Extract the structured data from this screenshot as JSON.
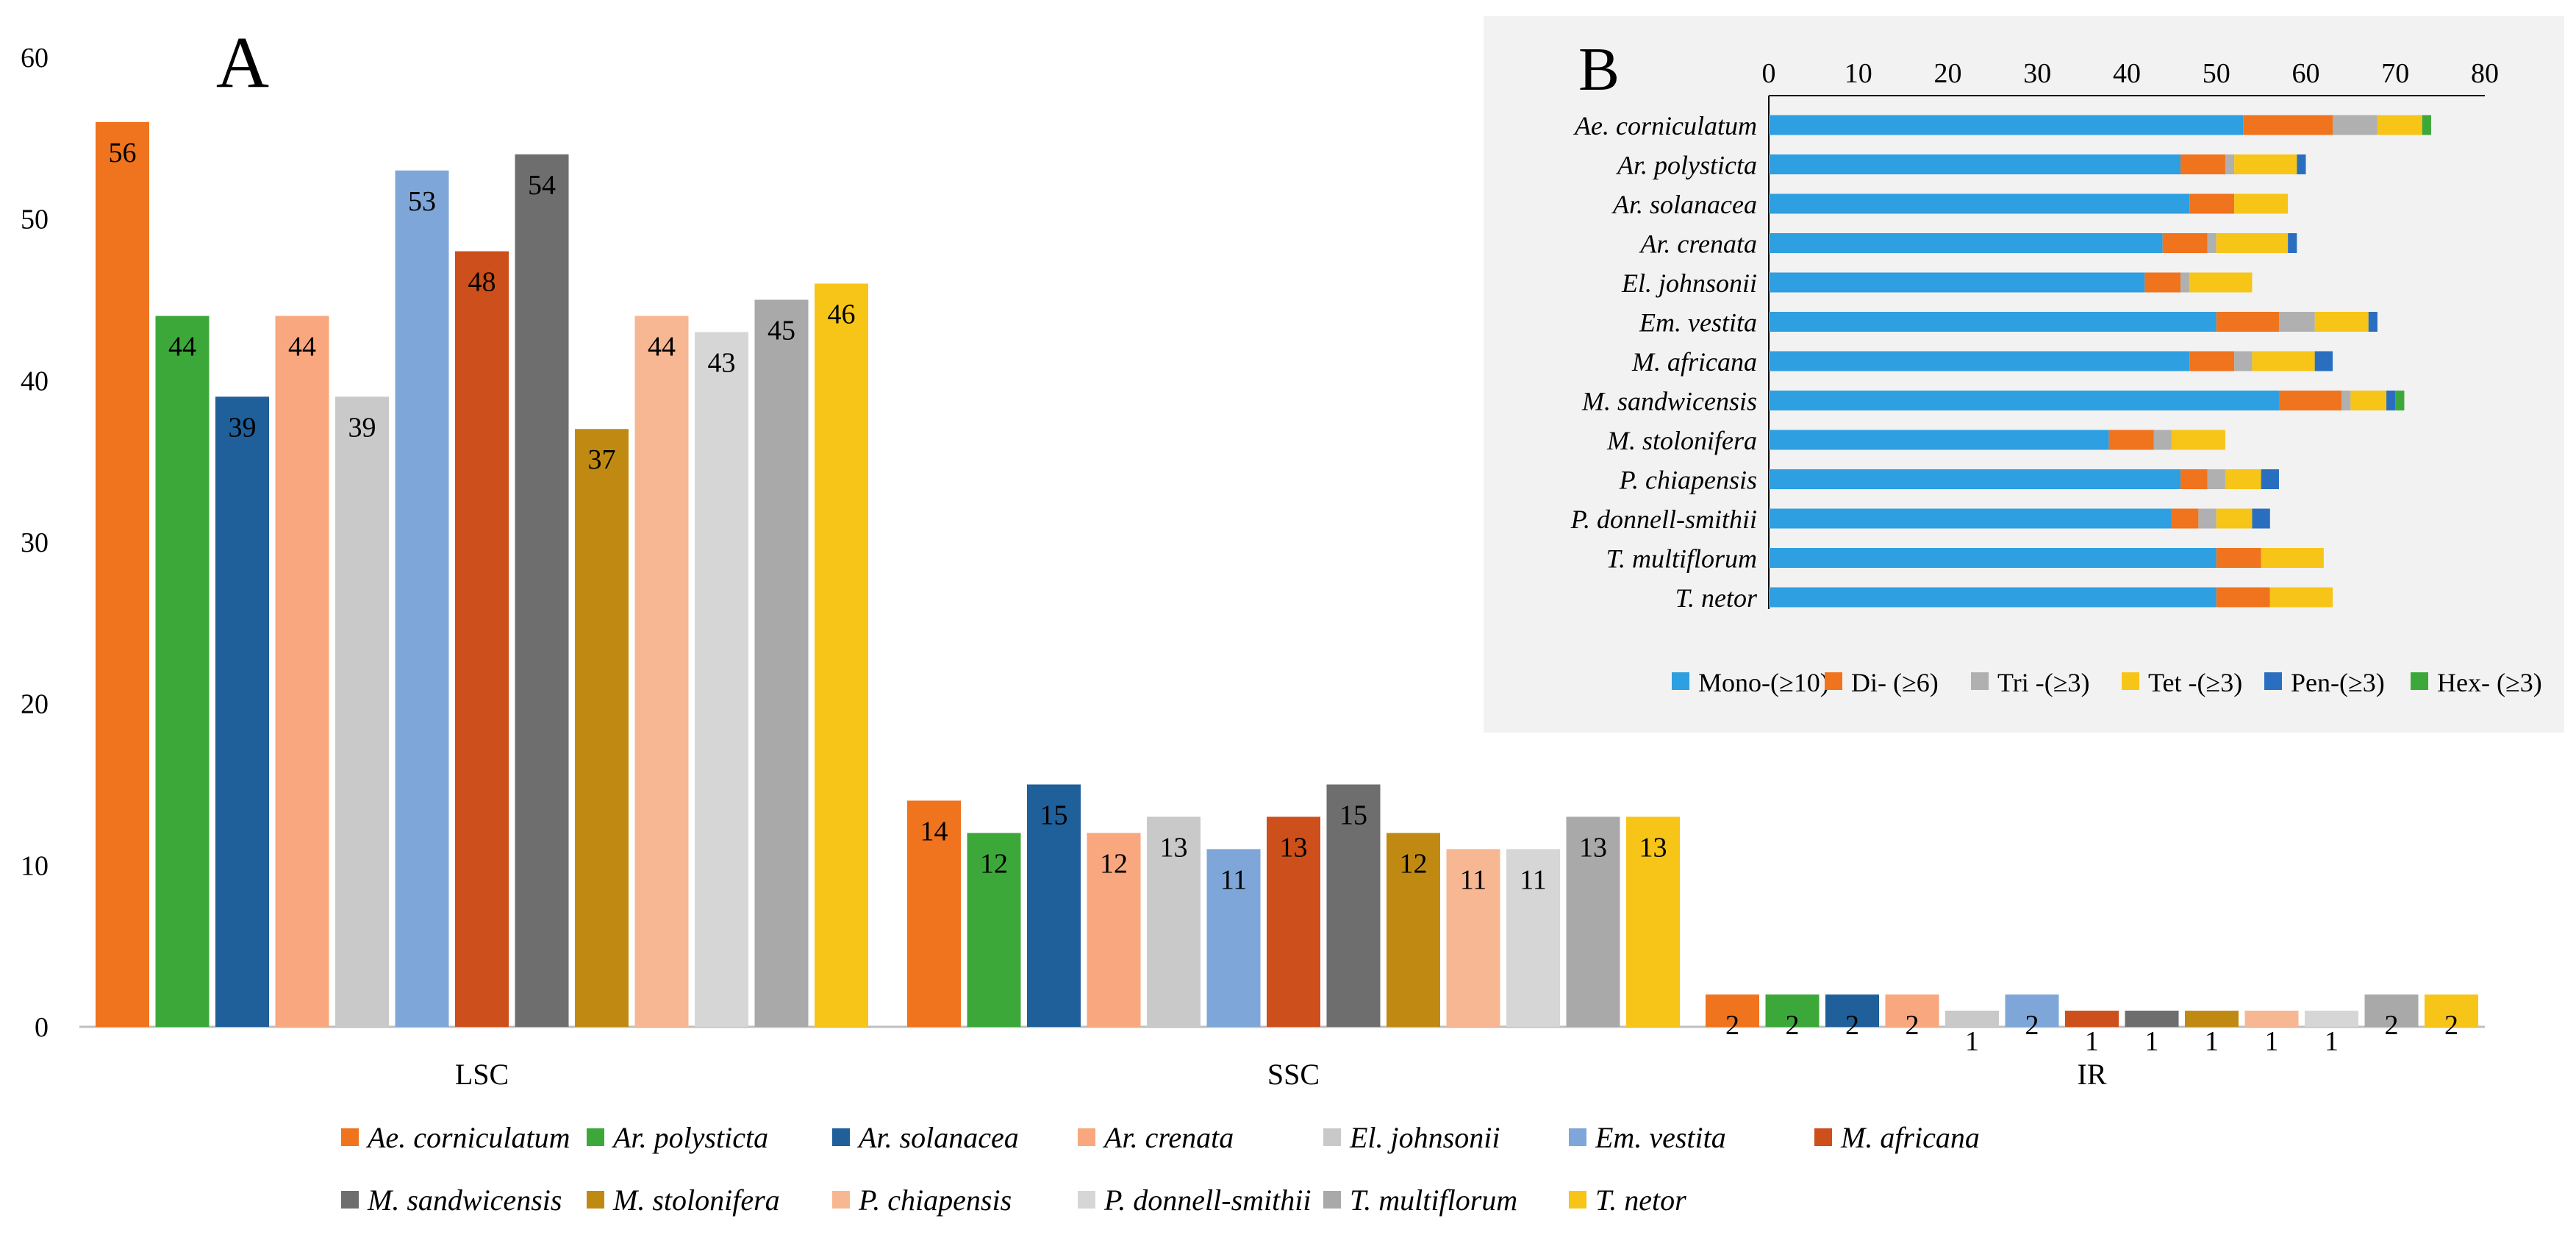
{
  "chart_data": [
    {
      "panel_label": "A",
      "type": "bar",
      "categories": [
        "LSC",
        "SSC",
        "IR"
      ],
      "ylim": [
        0,
        60
      ],
      "yticks": [
        0,
        10,
        20,
        30,
        40,
        50,
        60
      ],
      "grid": false,
      "legend_position": "bottom",
      "series": [
        {
          "name": "Ae. corniculatum",
          "color": "#f0731e",
          "values": [
            56,
            14,
            2
          ]
        },
        {
          "name": "Ar. polysticta",
          "color": "#3da83a",
          "values": [
            44,
            12,
            2
          ]
        },
        {
          "name": "Ar. solanacea",
          "color": "#1f5f9a",
          "values": [
            39,
            15,
            2
          ]
        },
        {
          "name": "Ar. crenata",
          "color": "#f9a77e",
          "values": [
            44,
            12,
            2
          ]
        },
        {
          "name": "El. johnsonii",
          "color": "#c9c9c9",
          "values": [
            39,
            13,
            1
          ]
        },
        {
          "name": "Em. vestita",
          "color": "#7fa6d9",
          "values": [
            53,
            11,
            2
          ]
        },
        {
          "name": "M. africana",
          "color": "#cc4f1c",
          "values": [
            48,
            13,
            1
          ]
        },
        {
          "name": "M. sandwicensis",
          "color": "#6e6e6e",
          "values": [
            54,
            15,
            1
          ]
        },
        {
          "name": "M. stolonifera",
          "color": "#c08a12",
          "values": [
            37,
            12,
            1
          ]
        },
        {
          "name": "P. chiapensis",
          "color": "#f7b792",
          "values": [
            44,
            11,
            1
          ]
        },
        {
          "name": "P. donnell-smithii",
          "color": "#d6d6d6",
          "values": [
            43,
            11,
            1
          ]
        },
        {
          "name": "T. multiflorum",
          "color": "#a9a9a9",
          "values": [
            45,
            13,
            2
          ]
        },
        {
          "name": "T. netor",
          "color": "#f7c518",
          "values": [
            46,
            13,
            2
          ]
        }
      ]
    },
    {
      "panel_label": "B",
      "type": "stacked-bar-horizontal",
      "xlim": [
        0,
        80
      ],
      "xticks": [
        0,
        10,
        20,
        30,
        40,
        50,
        60,
        70,
        80
      ],
      "grid": false,
      "legend_position": "bottom",
      "categories": [
        "Ae. corniculatum",
        "Ar. polysticta",
        "Ar. solanacea",
        "Ar. crenata",
        "El. johnsonii",
        "Em. vestita",
        "M. africana",
        "M. sandwicensis",
        "M. stolonifera",
        "P. chiapensis",
        "P. donnell-smithii",
        "T. multiflorum",
        "T. netor"
      ],
      "series": [
        {
          "name": "Mono-(≥10)",
          "color": "#2e9fe0",
          "values": [
            53,
            46,
            47,
            44,
            42,
            50,
            47,
            57,
            38,
            46,
            45,
            50,
            50
          ]
        },
        {
          "name": "Di- (≥6)",
          "color": "#f0731e",
          "values": [
            10,
            5,
            5,
            5,
            4,
            7,
            5,
            7,
            5,
            3,
            3,
            5,
            6
          ]
        },
        {
          "name": "Tri -(≥3)",
          "color": "#b0b0b0",
          "values": [
            5,
            1,
            0,
            1,
            1,
            4,
            2,
            1,
            2,
            2,
            2,
            0,
            0
          ]
        },
        {
          "name": "Tet -(≥3)",
          "color": "#f7c518",
          "values": [
            5,
            7,
            6,
            8,
            7,
            6,
            7,
            4,
            6,
            4,
            4,
            7,
            7
          ]
        },
        {
          "name": "Pen-(≥3)",
          "color": "#2a6fbf",
          "values": [
            0,
            1,
            0,
            1,
            0,
            1,
            2,
            1,
            0,
            2,
            2,
            0,
            0
          ]
        },
        {
          "name": "Hex- (≥3)",
          "color": "#3da83a",
          "values": [
            1,
            0,
            0,
            0,
            0,
            0,
            0,
            1,
            0,
            0,
            0,
            0,
            0
          ]
        }
      ]
    }
  ]
}
